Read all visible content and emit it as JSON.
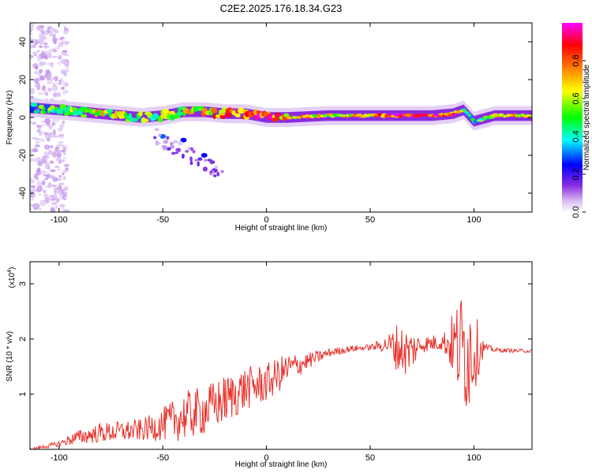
{
  "figure_title": "C2E2.2025.176.18.34.G23",
  "chart_data": [
    {
      "type": "heatmap",
      "xlabel": "Height of straight line (km)",
      "ylabel": "Frequency (Hz)",
      "xlim": [
        -114,
        128
      ],
      "ylim": [
        -50,
        50
      ],
      "xticks": [
        -100,
        -50,
        0,
        50,
        100
      ],
      "yticks": [
        -40,
        -20,
        0,
        20,
        40
      ],
      "colorbar": {
        "label": "Normalized spectral amplitude",
        "range": [
          0,
          1
        ],
        "ticks": [
          0.0,
          0.2,
          0.4,
          0.6,
          0.8
        ],
        "tick_labels": [
          "0.0",
          "0.2",
          "0.4",
          "0.6",
          "0.8"
        ],
        "colormap": [
          "#ffffff",
          "#d7b9f2",
          "#8a2be2",
          "#0000ff",
          "#00ffff",
          "#00ff00",
          "#ffff00",
          "#ff8000",
          "#ff0000",
          "#ff00ff"
        ]
      },
      "ridge": [
        {
          "x": -112,
          "y": 5,
          "amp": 0.4
        },
        {
          "x": -100,
          "y": 4,
          "amp": 0.5
        },
        {
          "x": -90,
          "y": 3,
          "amp": 0.55
        },
        {
          "x": -80,
          "y": 2,
          "amp": 0.6
        },
        {
          "x": -70,
          "y": 1,
          "amp": 0.55
        },
        {
          "x": -60,
          "y": 0,
          "amp": 0.5
        },
        {
          "x": -50,
          "y": 1,
          "amp": 0.55
        },
        {
          "x": -40,
          "y": 3,
          "amp": 0.6
        },
        {
          "x": -30,
          "y": 3,
          "amp": 0.65
        },
        {
          "x": -20,
          "y": 2,
          "amp": 0.75
        },
        {
          "x": -10,
          "y": 2,
          "amp": 0.8
        },
        {
          "x": 0,
          "y": 0,
          "amp": 0.85
        },
        {
          "x": 10,
          "y": 0,
          "amp": 0.7
        },
        {
          "x": 30,
          "y": 1,
          "amp": 0.6
        },
        {
          "x": 50,
          "y": 1,
          "amp": 0.65
        },
        {
          "x": 60,
          "y": 1,
          "amp": 0.85
        },
        {
          "x": 80,
          "y": 1,
          "amp": 0.9
        },
        {
          "x": 90,
          "y": 2,
          "amp": 0.8
        },
        {
          "x": 95,
          "y": 4,
          "amp": 0.5
        },
        {
          "x": 100,
          "y": -2,
          "amp": 0.4
        },
        {
          "x": 110,
          "y": 1,
          "amp": 0.6
        },
        {
          "x": 128,
          "y": 1,
          "amp": 0.7
        }
      ],
      "secondary_branch": [
        {
          "x": -50,
          "y": -10,
          "amp": 0.3
        },
        {
          "x": -40,
          "y": -12,
          "amp": 0.25
        },
        {
          "x": -30,
          "y": -20,
          "amp": 0.25
        },
        {
          "x": -25,
          "y": -28,
          "amp": 0.15
        }
      ]
    },
    {
      "type": "line",
      "xlabel": "Height of straight line (km)",
      "ylabel": "SNR (10 * v/v)",
      "scale_label": "(x10",
      "scale_exponent": "4",
      "scale_close": ")",
      "xlim": [
        -114,
        128
      ],
      "ylim": [
        0,
        3.4
      ],
      "xticks": [
        -100,
        -50,
        0,
        50,
        100
      ],
      "yticks": [
        1,
        2,
        3
      ],
      "color": "#e8302a",
      "trend": [
        {
          "x": -114,
          "y": 0.0,
          "noise": 0.02
        },
        {
          "x": -100,
          "y": 0.1,
          "noise": 0.05
        },
        {
          "x": -93,
          "y": 0.2,
          "noise": 0.12
        },
        {
          "x": -80,
          "y": 0.3,
          "noise": 0.18
        },
        {
          "x": -60,
          "y": 0.35,
          "noise": 0.2
        },
        {
          "x": -50,
          "y": 0.45,
          "noise": 0.3
        },
        {
          "x": -40,
          "y": 0.6,
          "noise": 0.45
        },
        {
          "x": -30,
          "y": 0.7,
          "noise": 0.45
        },
        {
          "x": -20,
          "y": 0.9,
          "noise": 0.45
        },
        {
          "x": -10,
          "y": 1.1,
          "noise": 0.4
        },
        {
          "x": 0,
          "y": 1.2,
          "noise": 0.35
        },
        {
          "x": 10,
          "y": 1.45,
          "noise": 0.3
        },
        {
          "x": 20,
          "y": 1.6,
          "noise": 0.15
        },
        {
          "x": 30,
          "y": 1.75,
          "noise": 0.08
        },
        {
          "x": 40,
          "y": 1.82,
          "noise": 0.06
        },
        {
          "x": 50,
          "y": 1.85,
          "noise": 0.05
        },
        {
          "x": 58,
          "y": 1.9,
          "noise": 0.15
        },
        {
          "x": 63,
          "y": 1.85,
          "noise": 0.45
        },
        {
          "x": 68,
          "y": 1.75,
          "noise": 0.45
        },
        {
          "x": 75,
          "y": 1.9,
          "noise": 0.15
        },
        {
          "x": 85,
          "y": 1.95,
          "noise": 0.15
        },
        {
          "x": 90,
          "y": 1.9,
          "noise": 0.6
        },
        {
          "x": 95,
          "y": 1.8,
          "noise": 1.2
        },
        {
          "x": 98,
          "y": 1.8,
          "noise": 1.1
        },
        {
          "x": 102,
          "y": 1.8,
          "noise": 0.5
        },
        {
          "x": 105,
          "y": 1.85,
          "noise": 0.08
        },
        {
          "x": 110,
          "y": 1.8,
          "noise": 0.04
        },
        {
          "x": 128,
          "y": 1.78,
          "noise": 0.03
        }
      ]
    }
  ]
}
